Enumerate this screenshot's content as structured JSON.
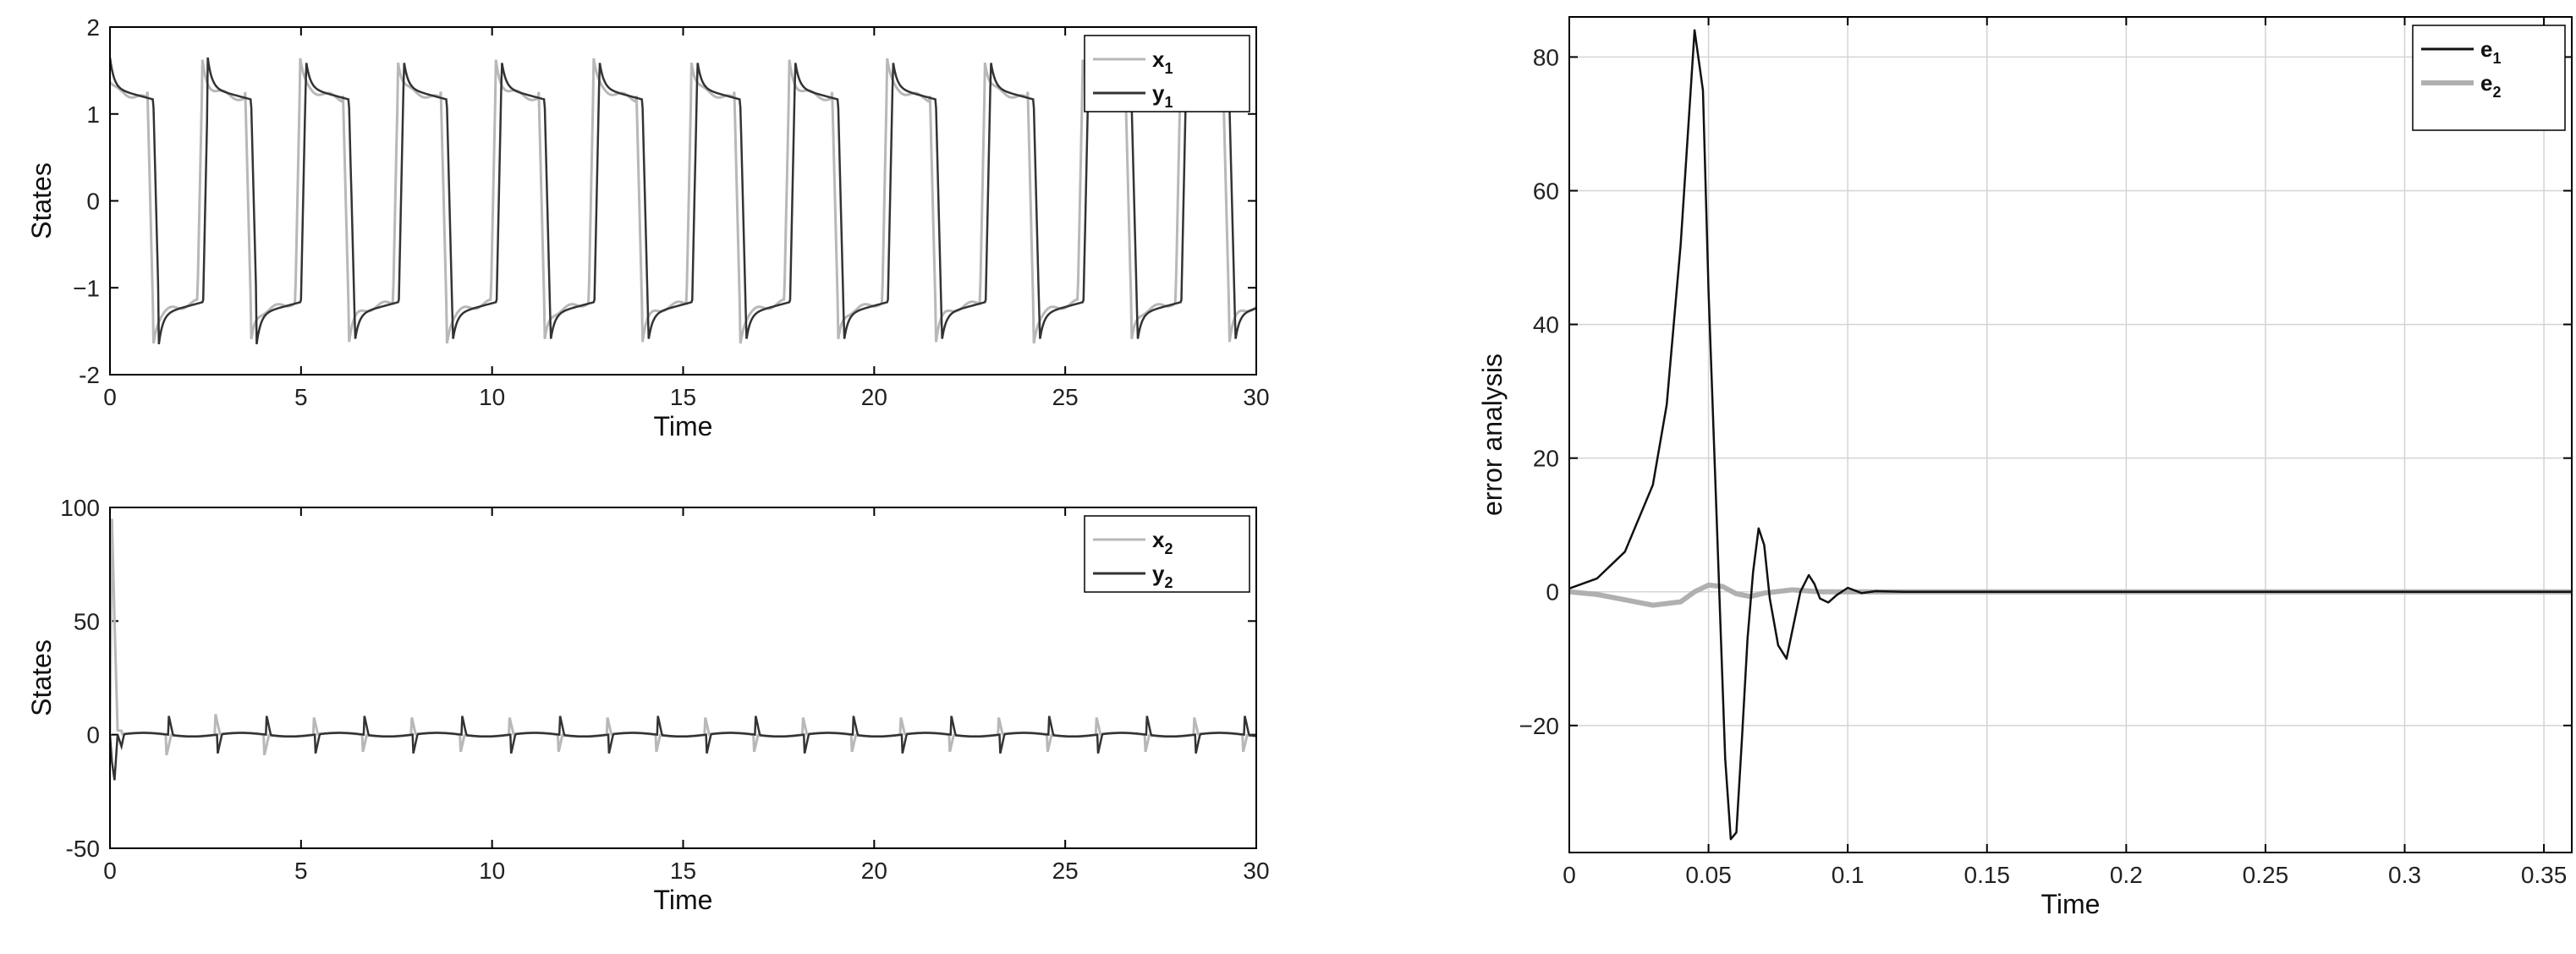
{
  "chart_data": [
    {
      "type": "line",
      "xlabel": "Time",
      "ylabel": "States",
      "xlim": [
        0,
        30
      ],
      "ylim": [
        -2,
        2
      ],
      "xticks": [
        0,
        5,
        10,
        15,
        20,
        25,
        30
      ],
      "yticks": [
        -2,
        -1,
        0,
        1,
        2
      ],
      "ytick_labels": [
        "-2",
        "−1",
        "0",
        "1",
        "2"
      ],
      "grid": false,
      "legend_position": "top-right",
      "series": [
        {
          "name": "x",
          "subscript": "1",
          "color": "#b8b8b8"
        },
        {
          "name": "y",
          "subscript": "1",
          "color": "#333333"
        }
      ],
      "signal": {
        "kind": "relaxation-oscillation",
        "period": 2.56,
        "plateau": 1.3,
        "peak": 1.65
      }
    },
    {
      "type": "line",
      "xlabel": "Time",
      "ylabel": "States",
      "xlim": [
        0,
        30
      ],
      "ylim": [
        -50,
        100
      ],
      "xticks": [
        0,
        5,
        10,
        15,
        20,
        25,
        30
      ],
      "yticks": [
        -50,
        0,
        50,
        100
      ],
      "ytick_labels": [
        "-50",
        "0",
        "50",
        "100"
      ],
      "grid": false,
      "legend_position": "top-right",
      "series": [
        {
          "name": "x",
          "subscript": "2",
          "color": "#b8b8b8"
        },
        {
          "name": "y",
          "subscript": "2",
          "color": "#333333"
        }
      ],
      "signal": {
        "kind": "spike-train",
        "period": 2.56,
        "spike_amplitude": 9,
        "initial_peak": 95
      }
    },
    {
      "type": "line",
      "xlabel": "Time",
      "ylabel": "error analysis",
      "xlim": [
        0,
        0.36
      ],
      "ylim": [
        -39,
        86
      ],
      "xticks": [
        0,
        0.05,
        0.1,
        0.15,
        0.2,
        0.25,
        0.3,
        0.35
      ],
      "xtick_labels": [
        "0",
        "0.05",
        "0.1",
        "0.15",
        "0.2",
        "0.25",
        "0.3",
        "0.35"
      ],
      "yticks": [
        -20,
        0,
        20,
        40,
        60,
        80
      ],
      "ytick_labels": [
        "−20",
        "0",
        "20",
        "40",
        "60",
        "80"
      ],
      "grid": true,
      "legend_position": "top-right",
      "series": [
        {
          "name": "e",
          "subscript": "1",
          "color": "#111111",
          "x": [
            0,
            0.01,
            0.02,
            0.03,
            0.035,
            0.04,
            0.045,
            0.048,
            0.05,
            0.053,
            0.056,
            0.058,
            0.06,
            0.062,
            0.064,
            0.066,
            0.068,
            0.07,
            0.072,
            0.075,
            0.078,
            0.08,
            0.083,
            0.086,
            0.088,
            0.09,
            0.093,
            0.096,
            0.1,
            0.105,
            0.11,
            0.12,
            0.36
          ],
          "values": [
            0.5,
            2,
            6,
            16,
            28,
            52,
            84,
            75,
            45,
            10,
            -25,
            -37,
            -36,
            -22,
            -7,
            3,
            9.5,
            7,
            -1,
            -8,
            -10,
            -6,
            0,
            2.5,
            1.2,
            -1,
            -1.6,
            -0.5,
            0.6,
            -0.2,
            0.1,
            0,
            0
          ]
        },
        {
          "name": "e",
          "subscript": "2",
          "color": "#b0b0b0",
          "x": [
            0,
            0.01,
            0.02,
            0.03,
            0.04,
            0.045,
            0.05,
            0.055,
            0.06,
            0.065,
            0.07,
            0.08,
            0.09,
            0.1,
            0.36
          ],
          "values": [
            0,
            -0.4,
            -1.2,
            -2,
            -1.5,
            0,
            1,
            0.8,
            -0.3,
            -0.7,
            -0.2,
            0.3,
            0,
            0,
            0
          ]
        }
      ]
    }
  ]
}
